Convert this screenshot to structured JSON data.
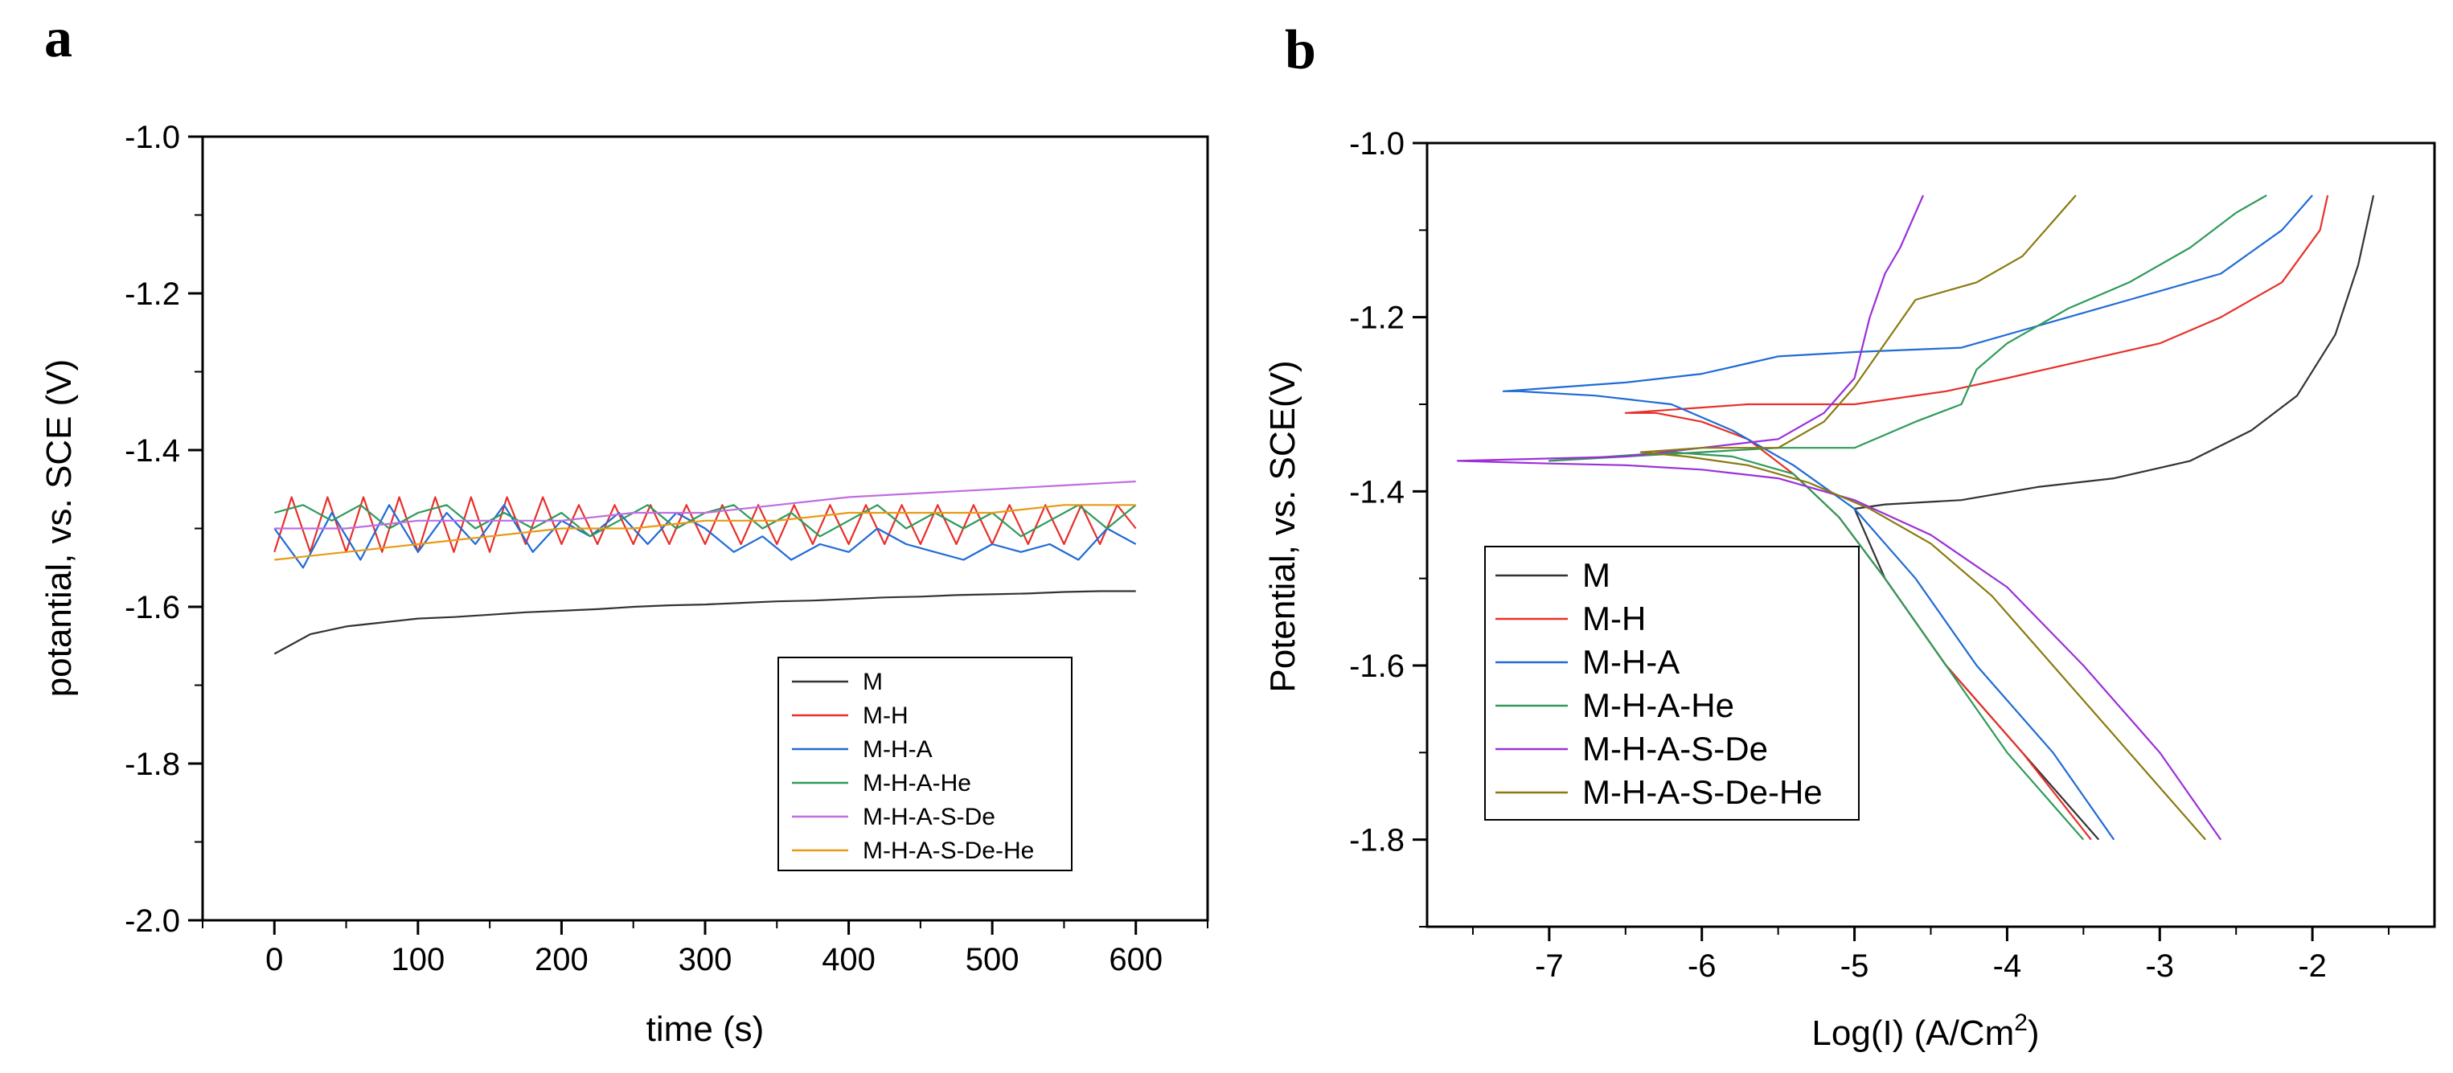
{
  "chart_data": [
    {
      "panel_label": "a",
      "type": "line",
      "xlabel": "time (s)",
      "ylabel": "potantial, vs. SCE (V)",
      "xlim": [
        -50,
        650
      ],
      "ylim": [
        -2.0,
        -1.0
      ],
      "xticks": [
        0,
        100,
        200,
        300,
        400,
        500,
        600
      ],
      "yticks": [
        -2.0,
        -1.8,
        -1.6,
        -1.4,
        -1.2,
        -1.0
      ],
      "xtick_labels": [
        "0",
        "100",
        "200",
        "300",
        "400",
        "500",
        "600"
      ],
      "ytick_labels": [
        "-2.0",
        "-1.8",
        "-1.6",
        "-1.4",
        "-1.2",
        "-1.0"
      ],
      "legend_position": "bottom-right",
      "grid": false,
      "series": [
        {
          "name": "M",
          "color": "#333333",
          "x": [
            0,
            25,
            50,
            75,
            100,
            125,
            150,
            175,
            200,
            225,
            250,
            275,
            300,
            325,
            350,
            375,
            400,
            425,
            450,
            475,
            500,
            525,
            550,
            575,
            600
          ],
          "y": [
            -1.66,
            -1.635,
            -1.625,
            -1.62,
            -1.615,
            -1.613,
            -1.61,
            -1.607,
            -1.605,
            -1.603,
            -1.6,
            -1.598,
            -1.597,
            -1.595,
            -1.593,
            -1.592,
            -1.59,
            -1.588,
            -1.587,
            -1.585,
            -1.584,
            -1.583,
            -1.581,
            -1.58,
            -1.58
          ]
        },
        {
          "name": "M-H",
          "color": "#e8302a",
          "x": [
            0,
            12,
            25,
            37,
            50,
            62,
            75,
            87,
            100,
            112,
            125,
            137,
            150,
            162,
            175,
            187,
            200,
            212,
            225,
            237,
            250,
            262,
            275,
            287,
            300,
            312,
            325,
            337,
            350,
            362,
            375,
            387,
            400,
            412,
            425,
            437,
            450,
            462,
            475,
            487,
            500,
            512,
            525,
            537,
            550,
            562,
            575,
            587,
            600
          ],
          "y": [
            -1.53,
            -1.46,
            -1.53,
            -1.46,
            -1.53,
            -1.46,
            -1.53,
            -1.46,
            -1.53,
            -1.46,
            -1.53,
            -1.46,
            -1.53,
            -1.46,
            -1.52,
            -1.46,
            -1.52,
            -1.47,
            -1.52,
            -1.47,
            -1.52,
            -1.47,
            -1.52,
            -1.47,
            -1.52,
            -1.47,
            -1.52,
            -1.47,
            -1.52,
            -1.47,
            -1.52,
            -1.47,
            -1.52,
            -1.47,
            -1.52,
            -1.47,
            -1.52,
            -1.47,
            -1.52,
            -1.47,
            -1.52,
            -1.47,
            -1.52,
            -1.47,
            -1.52,
            -1.47,
            -1.52,
            -1.47,
            -1.5
          ]
        },
        {
          "name": "M-H-A",
          "color": "#1f6bd6",
          "x": [
            0,
            20,
            40,
            60,
            80,
            100,
            120,
            140,
            160,
            180,
            200,
            220,
            240,
            260,
            280,
            300,
            320,
            340,
            360,
            380,
            400,
            420,
            440,
            460,
            480,
            500,
            520,
            540,
            560,
            580,
            600
          ],
          "y": [
            -1.5,
            -1.55,
            -1.48,
            -1.54,
            -1.47,
            -1.53,
            -1.48,
            -1.52,
            -1.47,
            -1.53,
            -1.49,
            -1.51,
            -1.48,
            -1.52,
            -1.48,
            -1.5,
            -1.53,
            -1.51,
            -1.54,
            -1.52,
            -1.53,
            -1.5,
            -1.52,
            -1.53,
            -1.54,
            -1.52,
            -1.53,
            -1.52,
            -1.54,
            -1.5,
            -1.52
          ]
        },
        {
          "name": "M-H-A-He",
          "color": "#2f9a5a",
          "x": [
            0,
            20,
            40,
            60,
            80,
            100,
            120,
            140,
            160,
            180,
            200,
            220,
            240,
            260,
            280,
            300,
            320,
            340,
            360,
            380,
            400,
            420,
            440,
            460,
            480,
            500,
            520,
            540,
            560,
            580,
            600
          ],
          "y": [
            -1.48,
            -1.47,
            -1.49,
            -1.47,
            -1.5,
            -1.48,
            -1.47,
            -1.5,
            -1.48,
            -1.5,
            -1.48,
            -1.51,
            -1.49,
            -1.47,
            -1.5,
            -1.48,
            -1.47,
            -1.5,
            -1.48,
            -1.51,
            -1.49,
            -1.47,
            -1.5,
            -1.48,
            -1.5,
            -1.48,
            -1.51,
            -1.49,
            -1.47,
            -1.5,
            -1.47
          ]
        },
        {
          "name": "M-H-A-S-De",
          "color": "#c06de0",
          "x": [
            0,
            50,
            100,
            150,
            200,
            250,
            300,
            350,
            400,
            450,
            500,
            550,
            600
          ],
          "y": [
            -1.5,
            -1.5,
            -1.49,
            -1.49,
            -1.49,
            -1.48,
            -1.48,
            -1.47,
            -1.46,
            -1.455,
            -1.45,
            -1.445,
            -1.44
          ]
        },
        {
          "name": "M-H-A-S-De-He",
          "color": "#e89a14",
          "x": [
            0,
            50,
            100,
            150,
            200,
            250,
            300,
            350,
            400,
            450,
            500,
            550,
            600
          ],
          "y": [
            -1.54,
            -1.53,
            -1.52,
            -1.51,
            -1.5,
            -1.5,
            -1.49,
            -1.49,
            -1.48,
            -1.48,
            -1.48,
            -1.47,
            -1.47
          ]
        }
      ]
    },
    {
      "panel_label": "b",
      "type": "line",
      "xlabel_main": "Log(I) (A/Cm",
      "xlabel_sup": "2",
      "xlabel_tail": ")",
      "ylabel": "Potential, vs. SCE(V)",
      "xlim": [
        -7.8,
        -1.2
      ],
      "ylim": [
        -1.9,
        -1.0
      ],
      "xticks": [
        -7,
        -6,
        -5,
        -4,
        -3,
        -2
      ],
      "yticks": [
        -1.8,
        -1.6,
        -1.4,
        -1.2,
        -1.0
      ],
      "xtick_labels": [
        "-7",
        "-6",
        "-5",
        "-4",
        "-3",
        "-2"
      ],
      "ytick_labels": [
        "-1.8",
        "-1.6",
        "-1.4",
        "-1.2",
        "-1.0"
      ],
      "legend_position": "bottom-left",
      "grid": false,
      "series": [
        {
          "name": "M",
          "color": "#333333",
          "x": [
            -3.4,
            -3.9,
            -4.4,
            -4.8,
            -5.0,
            -4.8,
            -4.3,
            -3.8,
            -3.3,
            -2.8,
            -2.4,
            -2.1,
            -1.85,
            -1.7,
            -1.6
          ],
          "y": [
            -1.8,
            -1.7,
            -1.6,
            -1.5,
            -1.42,
            -1.415,
            -1.41,
            -1.395,
            -1.385,
            -1.365,
            -1.33,
            -1.29,
            -1.22,
            -1.14,
            -1.06
          ]
        },
        {
          "name": "M-H",
          "color": "#e8302a",
          "x": [
            -3.45,
            -3.9,
            -4.4,
            -4.8,
            -5.1,
            -5.4,
            -5.7,
            -6.0,
            -6.3,
            -6.5,
            -5.7,
            -5.0,
            -4.4,
            -4.0,
            -3.5,
            -3.0,
            -2.6,
            -2.2,
            -1.95,
            -1.9
          ],
          "y": [
            -1.8,
            -1.7,
            -1.6,
            -1.5,
            -1.43,
            -1.38,
            -1.34,
            -1.32,
            -1.31,
            -1.31,
            -1.3,
            -1.3,
            -1.285,
            -1.27,
            -1.25,
            -1.23,
            -1.2,
            -1.16,
            -1.1,
            -1.06
          ]
        },
        {
          "name": "M-H-A",
          "color": "#1f6bd6",
          "x": [
            -3.3,
            -3.7,
            -4.2,
            -4.6,
            -5.0,
            -5.4,
            -5.8,
            -6.2,
            -6.7,
            -7.2,
            -7.3,
            -6.5,
            -6.0,
            -5.5,
            -5.0,
            -4.3,
            -3.8,
            -3.2,
            -2.6,
            -2.2,
            -2.0
          ],
          "y": [
            -1.8,
            -1.7,
            -1.6,
            -1.5,
            -1.42,
            -1.37,
            -1.33,
            -1.3,
            -1.29,
            -1.285,
            -1.285,
            -1.275,
            -1.265,
            -1.245,
            -1.24,
            -1.235,
            -1.21,
            -1.18,
            -1.15,
            -1.1,
            -1.06
          ]
        },
        {
          "name": "M-H-A-He",
          "color": "#2f9a5a",
          "x": [
            -3.5,
            -4.0,
            -4.4,
            -4.8,
            -5.1,
            -5.4,
            -5.8,
            -6.2,
            -6.6,
            -7.0,
            -6.5,
            -6.0,
            -5.5,
            -5.0,
            -4.6,
            -4.3,
            -4.2,
            -4.0,
            -3.6,
            -3.2,
            -2.8,
            -2.5,
            -2.3
          ],
          "y": [
            -1.8,
            -1.7,
            -1.6,
            -1.5,
            -1.43,
            -1.38,
            -1.36,
            -1.355,
            -1.36,
            -1.365,
            -1.36,
            -1.355,
            -1.35,
            -1.35,
            -1.32,
            -1.3,
            -1.26,
            -1.23,
            -1.19,
            -1.16,
            -1.12,
            -1.08,
            -1.06
          ]
        },
        {
          "name": "M-H-A-S-De",
          "color": "#9b30d9",
          "x": [
            -2.6,
            -3.0,
            -3.5,
            -4.0,
            -4.5,
            -5.0,
            -5.5,
            -6.0,
            -6.5,
            -7.0,
            -7.6,
            -6.5,
            -6.0,
            -5.5,
            -5.2,
            -5.0,
            -4.9,
            -4.8,
            -4.7,
            -4.6,
            -4.55
          ],
          "y": [
            -1.8,
            -1.7,
            -1.6,
            -1.51,
            -1.45,
            -1.41,
            -1.385,
            -1.375,
            -1.37,
            -1.368,
            -1.365,
            -1.36,
            -1.35,
            -1.34,
            -1.31,
            -1.27,
            -1.2,
            -1.15,
            -1.12,
            -1.08,
            -1.06
          ]
        },
        {
          "name": "M-H-A-S-De-He",
          "color": "#8a7a10",
          "x": [
            -2.7,
            -3.2,
            -3.7,
            -4.1,
            -4.5,
            -4.9,
            -5.3,
            -5.7,
            -6.1,
            -6.4,
            -6.0,
            -5.5,
            -5.2,
            -5.0,
            -4.8,
            -4.6,
            -4.2,
            -3.9,
            -3.7,
            -3.55
          ],
          "y": [
            -1.8,
            -1.7,
            -1.6,
            -1.52,
            -1.46,
            -1.42,
            -1.39,
            -1.37,
            -1.36,
            -1.355,
            -1.35,
            -1.35,
            -1.32,
            -1.28,
            -1.23,
            -1.18,
            -1.16,
            -1.13,
            -1.09,
            -1.06
          ]
        }
      ]
    }
  ]
}
